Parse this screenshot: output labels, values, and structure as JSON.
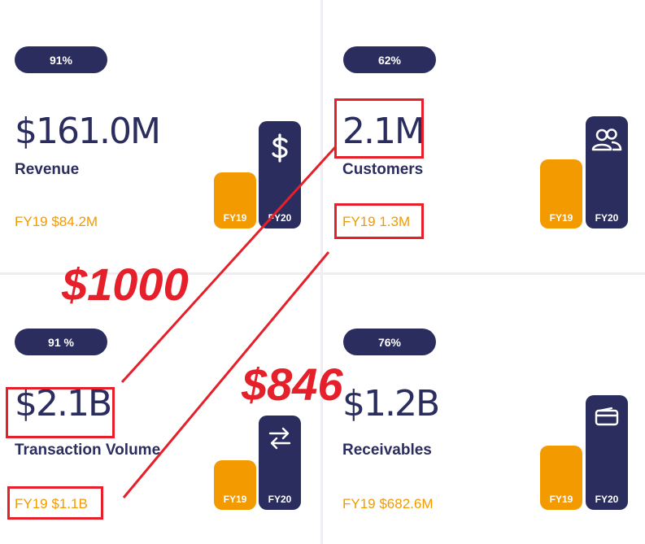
{
  "cards": [
    {
      "percent": "91%",
      "value": "$161.0M",
      "label": "Revenue",
      "previous": "FY19 $84.2M",
      "bars": {
        "fy19_label": "FY19",
        "fy20_label": "FY20"
      },
      "icon": "dollar-icon"
    },
    {
      "percent": "62%",
      "value": "2.1M",
      "label": "Customers",
      "previous": "FY19 1.3M",
      "bars": {
        "fy19_label": "FY19",
        "fy20_label": "FY20"
      },
      "icon": "users-icon"
    },
    {
      "percent": "91 %",
      "value": "$2.1B",
      "label": "Transaction Volume",
      "previous": "FY19 $1.1B",
      "bars": {
        "fy19_label": "FY19",
        "fy20_label": "FY20"
      },
      "icon": "swap-arrows-icon"
    },
    {
      "percent": "76%",
      "value": "$1.2B",
      "label": "Receivables",
      "previous": "FY19 $682.6M",
      "bars": {
        "fy19_label": "FY19",
        "fy20_label": "FY20"
      },
      "icon": "wallet-icon"
    }
  ],
  "annotations": {
    "text_1": "$1000",
    "text_2": "$846",
    "color": "#e5202a"
  },
  "colors": {
    "navy": "#2b2d5e",
    "orange": "#f29a00"
  }
}
